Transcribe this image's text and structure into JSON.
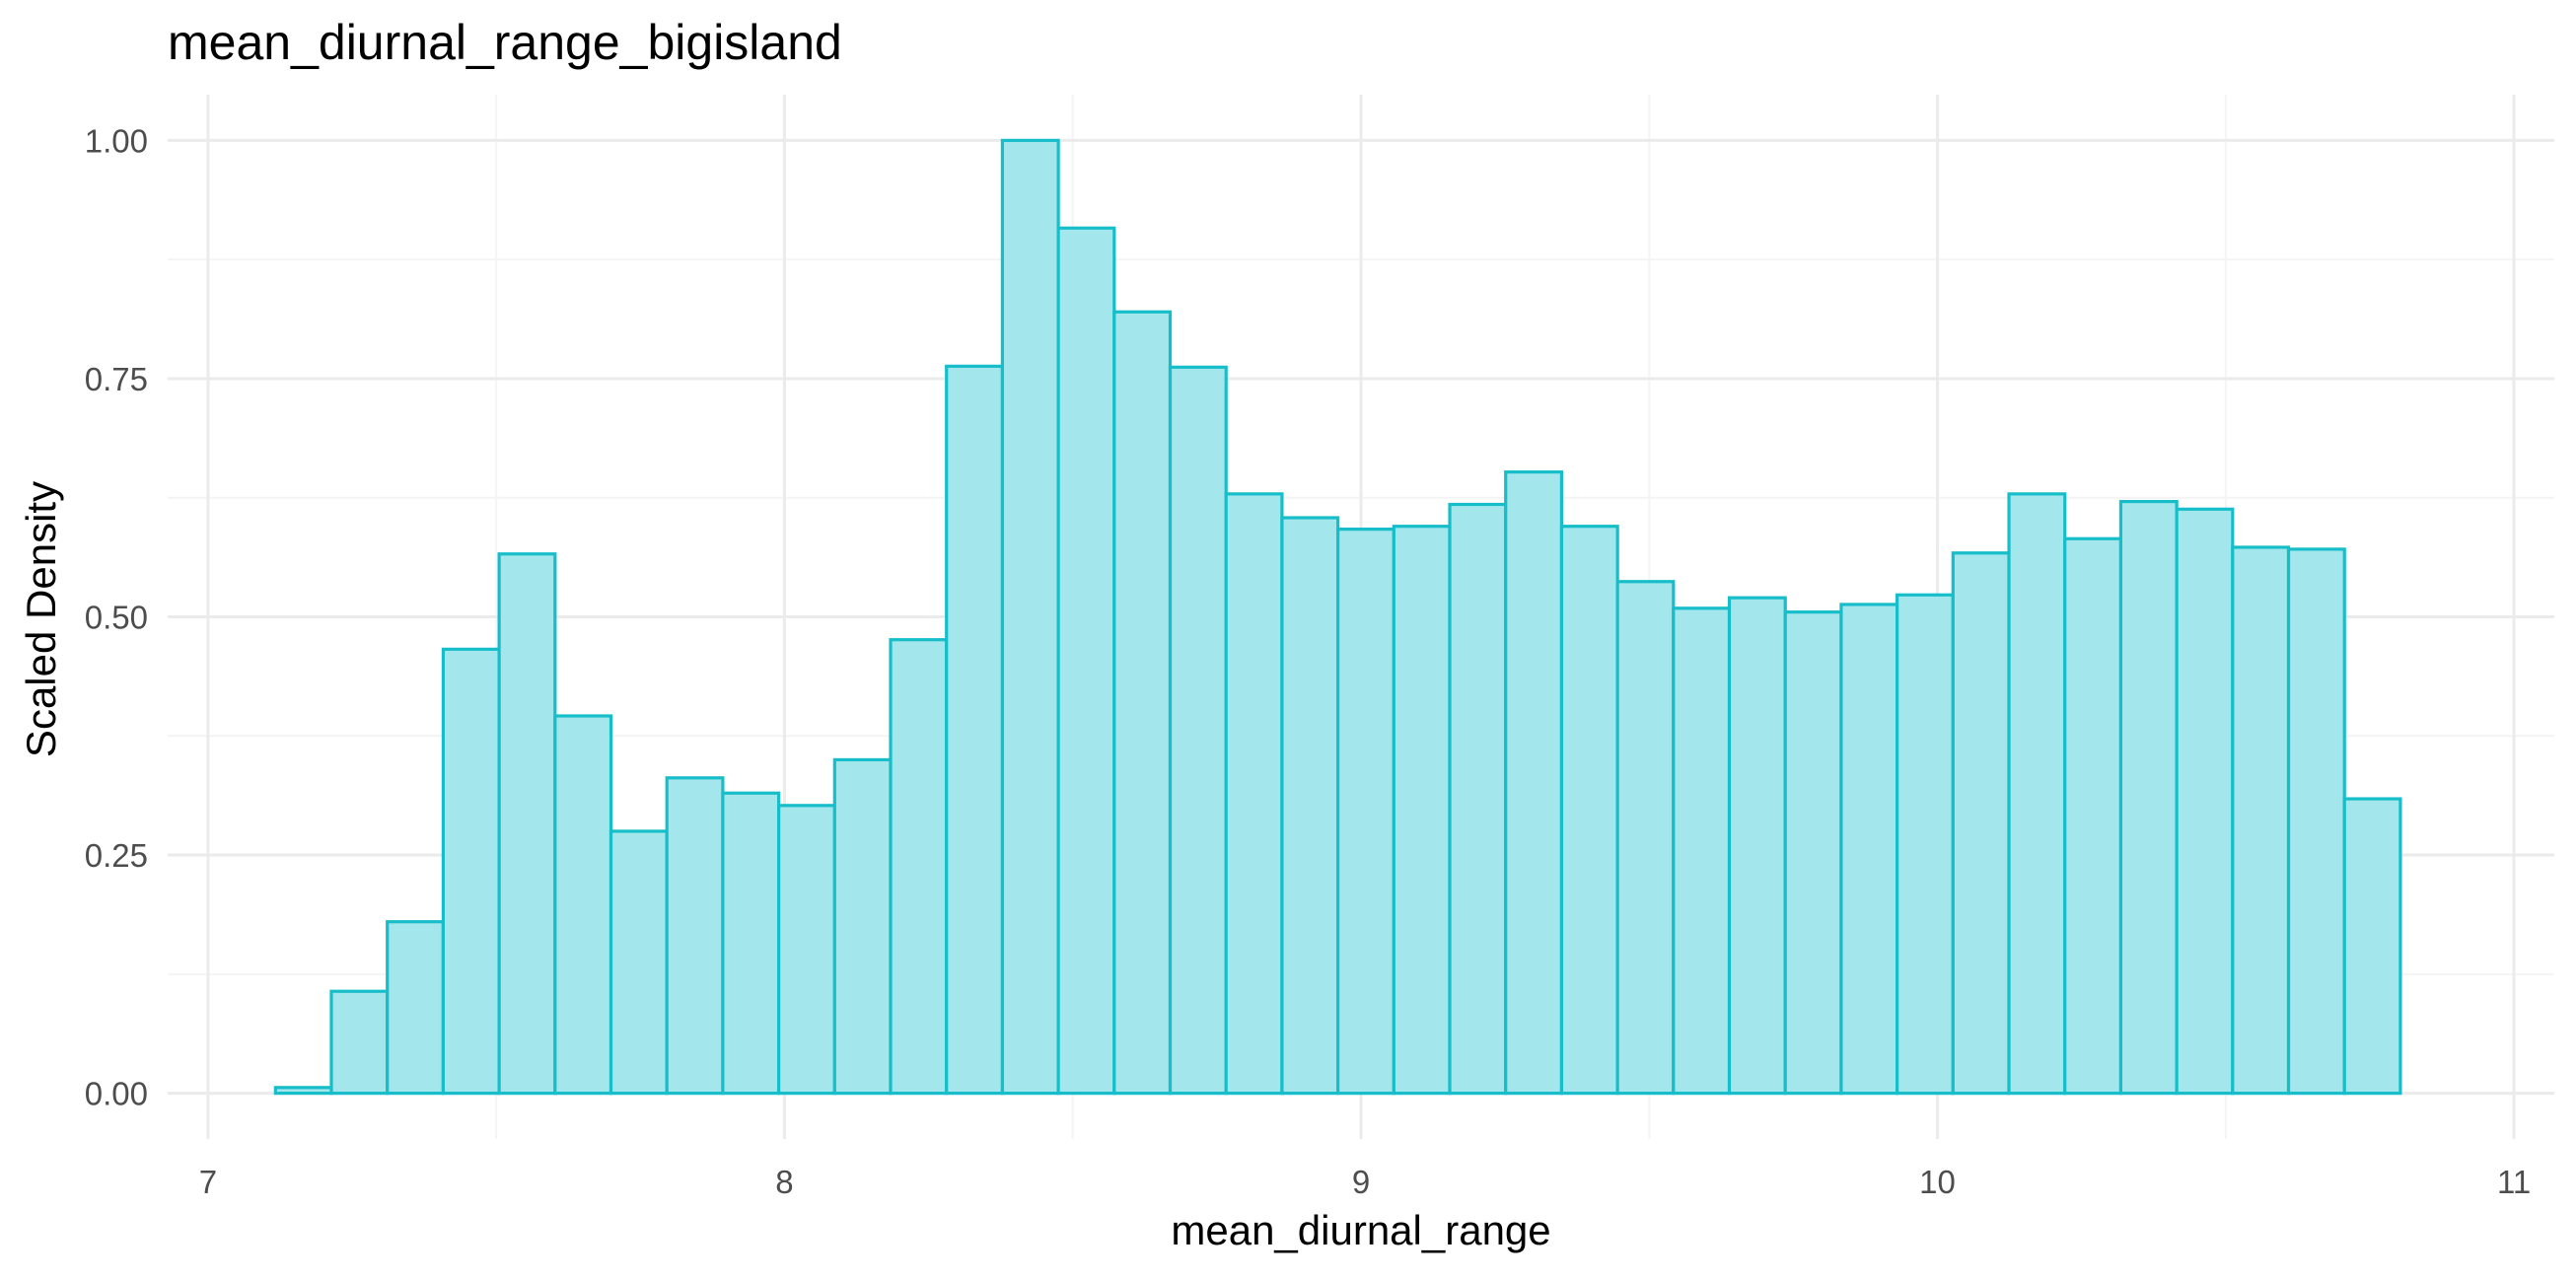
{
  "chart_data": {
    "type": "bar",
    "title": "mean_diurnal_range_bigisland",
    "xlabel": "mean_diurnal_range",
    "ylabel": "Scaled Density",
    "xlim": [
      6.93,
      11.07
    ],
    "ylim": [
      -0.048,
      1.048
    ],
    "x_ticks": [
      7,
      8,
      9,
      10,
      11
    ],
    "x_tick_labels": [
      "7",
      "8",
      "9",
      "10",
      "11"
    ],
    "y_ticks": [
      0,
      0.25,
      0.5,
      0.75,
      1.0
    ],
    "y_tick_labels": [
      "0.00",
      "0.25",
      "0.50",
      "0.75",
      "1.00"
    ],
    "grid": true,
    "bin_width": 0.097,
    "bin_start": 7.117,
    "values": [
      0.006,
      0.107,
      0.18,
      0.466,
      0.566,
      0.396,
      0.275,
      0.331,
      0.315,
      0.302,
      0.35,
      0.476,
      0.763,
      1.0,
      0.908,
      0.82,
      0.762,
      0.629,
      0.604,
      0.592,
      0.595,
      0.618,
      0.652,
      0.595,
      0.537,
      0.509,
      0.52,
      0.505,
      0.513,
      0.523,
      0.567,
      0.629,
      0.582,
      0.621,
      0.613,
      0.573,
      0.571,
      0.309
    ],
    "colors": {
      "fill": "#A3E7EC",
      "stroke": "#17BEC9",
      "grid_major": "#EBEBEB",
      "grid_minor": "#F4F4F4"
    }
  }
}
